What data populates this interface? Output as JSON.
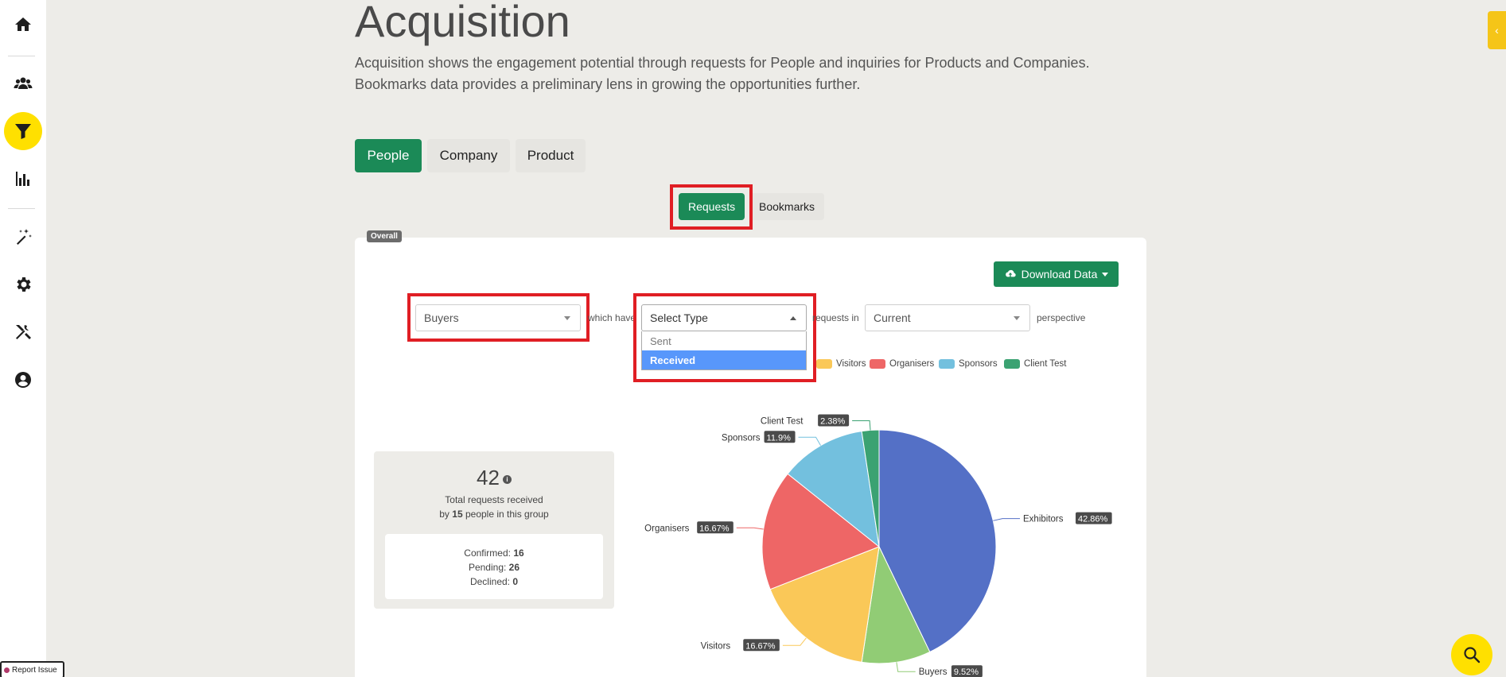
{
  "sidebar": {
    "items": [
      {
        "name": "home",
        "icon": "home-icon"
      },
      {
        "name": "people",
        "icon": "users-icon"
      },
      {
        "name": "acquisition",
        "icon": "filter-icon",
        "active": true
      },
      {
        "name": "analytics",
        "icon": "bar-chart-icon"
      },
      {
        "name": "magic",
        "icon": "magic-wand-icon"
      },
      {
        "name": "settings",
        "icon": "gear-icon"
      },
      {
        "name": "tools",
        "icon": "tools-icon"
      },
      {
        "name": "account",
        "icon": "user-circle-icon"
      }
    ]
  },
  "header": {
    "title": "Acquisition",
    "description_line1": "Acquisition shows the engagement potential through requests for People and inquiries for Products and Companies.",
    "description_line2": "Bookmarks data provides a preliminary lens in growing the opportunities further."
  },
  "tabs": [
    {
      "label": "People",
      "active": true
    },
    {
      "label": "Company",
      "active": false
    },
    {
      "label": "Product",
      "active": false
    }
  ],
  "subtabs": [
    {
      "label": "Requests",
      "active": true
    },
    {
      "label": "Bookmarks",
      "active": false
    }
  ],
  "card": {
    "badge": "Overall",
    "download_label": "Download Data"
  },
  "filters": {
    "group_value": "Buyers",
    "text_which_have": "which have",
    "type_value": "Select Type",
    "text_requests_in": "requests in",
    "perspective_value": "Current",
    "text_perspective": "perspective",
    "type_options": [
      {
        "label": "Sent",
        "selected": false
      },
      {
        "label": "Received",
        "selected": true
      }
    ]
  },
  "legend": [
    {
      "label": "Visitors",
      "color": "#fac858"
    },
    {
      "label": "Organisers",
      "color": "#ee6666"
    },
    {
      "label": "Sponsors",
      "color": "#73c0de"
    },
    {
      "label": "Client Test",
      "color": "#3ba272"
    }
  ],
  "stats": {
    "total": "42",
    "total_line1": "Total requests received",
    "total_line2_prefix": "by",
    "people_count": "15",
    "total_line2_suffix": "people in this group",
    "confirmed_label": "Confirmed:",
    "confirmed_value": "16",
    "pending_label": "Pending:",
    "pending_value": "26",
    "declined_label": "Declined:",
    "declined_value": "0"
  },
  "chart_data": {
    "type": "pie",
    "slices": [
      {
        "name": "Exhibitors",
        "value": 42.86,
        "label": "42.86%",
        "color": "#5470c6"
      },
      {
        "name": "Buyers",
        "value": 9.52,
        "label": "9.52%",
        "color": "#91cc75"
      },
      {
        "name": "Visitors",
        "value": 16.67,
        "label": "16.67%",
        "color": "#fac858"
      },
      {
        "name": "Organisers",
        "value": 16.67,
        "label": "16.67%",
        "color": "#ee6666"
      },
      {
        "name": "Sponsors",
        "value": 11.9,
        "label": "11.9%",
        "color": "#73c0de"
      },
      {
        "name": "Client Test",
        "value": 2.38,
        "label": "2.38%",
        "color": "#3ba272"
      }
    ]
  },
  "footer": {
    "report_issue": "Report Issue"
  }
}
